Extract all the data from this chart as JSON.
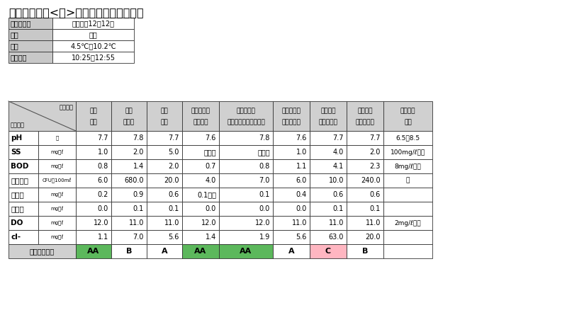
{
  "title": "令和４年度　<冬>の河川水質検査の結果",
  "info_rows": [
    [
      "採水年月日",
      "令和４年12月12日"
    ],
    [
      "天候",
      "晴れ"
    ],
    [
      "気温",
      "4.5℃～10.2℃"
    ],
    [
      "採水時間",
      "10:25～12:55"
    ]
  ],
  "col_headers": [
    [
      "採水場所",
      "樽川\n糸干",
      "樽川\n小見橋",
      "樽川\n新橋",
      "馬曲川上流\n（馬曲）",
      "馬曲川下流\n（グリーンセンター）",
      "大川最上流\n（西小路）",
      "大川上流\n（西小路）",
      "大川下流\n（市之割）",
      "農業用水\n基準"
    ]
  ],
  "rows": [
    {
      "name": "pH",
      "unit": "－",
      "vals": [
        "7.7",
        "7.8",
        "7.7",
        "7.6",
        "7.8",
        "7.6",
        "7.7",
        "7.7",
        "6.5～8.5"
      ]
    },
    {
      "name": "SS",
      "unit": "mg／ℓ",
      "vals": [
        "1.0",
        "2.0",
        "5.0",
        "１未満",
        "１未満",
        "1.0",
        "4.0",
        "2.0",
        "100mg/ℓ以下"
      ]
    },
    {
      "name": "BOD",
      "unit": "mg／ℓ",
      "vals": [
        "0.8",
        "1.4",
        "2.0",
        "0.7",
        "0.8",
        "1.1",
        "4.1",
        "2.3",
        "8mg/ℓ以下"
      ]
    },
    {
      "name": "大腸菌数",
      "unit": "CFU／100mℓ",
      "vals": [
        "6.0",
        "680.0",
        "20.0",
        "4.0",
        "7.0",
        "6.0",
        "10.0",
        "240.0",
        "・"
      ]
    },
    {
      "name": "全窒素",
      "unit": "mg／ℓ",
      "vals": [
        "0.2",
        "0.9",
        "0.6",
        "0.1未満",
        "0.1",
        "0.4",
        "0.6",
        "0.6",
        ""
      ]
    },
    {
      "name": "全りん",
      "unit": "mg／ℓ",
      "vals": [
        "0.0",
        "0.1",
        "0.1",
        "0.0",
        "0.0",
        "0.0",
        "0.1",
        "0.1",
        ""
      ]
    },
    {
      "name": "DO",
      "unit": "mg／ℓ",
      "vals": [
        "12.0",
        "11.0",
        "11.0",
        "12.0",
        "12.0",
        "11.0",
        "11.0",
        "11.0",
        "2mg/ℓ以上"
      ]
    },
    {
      "name": "cl-",
      "unit": "mg／ℓ",
      "vals": [
        "1.1",
        "7.0",
        "5.6",
        "1.4",
        "1.9",
        "5.6",
        "63.0",
        "20.0",
        ""
      ]
    }
  ],
  "river_comparison": {
    "label": "河川類型比較",
    "vals": [
      "AA",
      "B",
      "A",
      "AA",
      "AA",
      "A",
      "C",
      "B",
      ""
    ],
    "colors": [
      "#5cb85c",
      "#ffffff",
      "#ffffff",
      "#5cb85c",
      "#5cb85c",
      "#ffffff",
      "#ffb6c1",
      "#ffffff",
      "#ffffff"
    ]
  },
  "header_bg": "#d0d0d0",
  "info_label_bg": "#c8c8c8",
  "info_val_bg": "#ffffff",
  "row_bg": "#ffffff"
}
